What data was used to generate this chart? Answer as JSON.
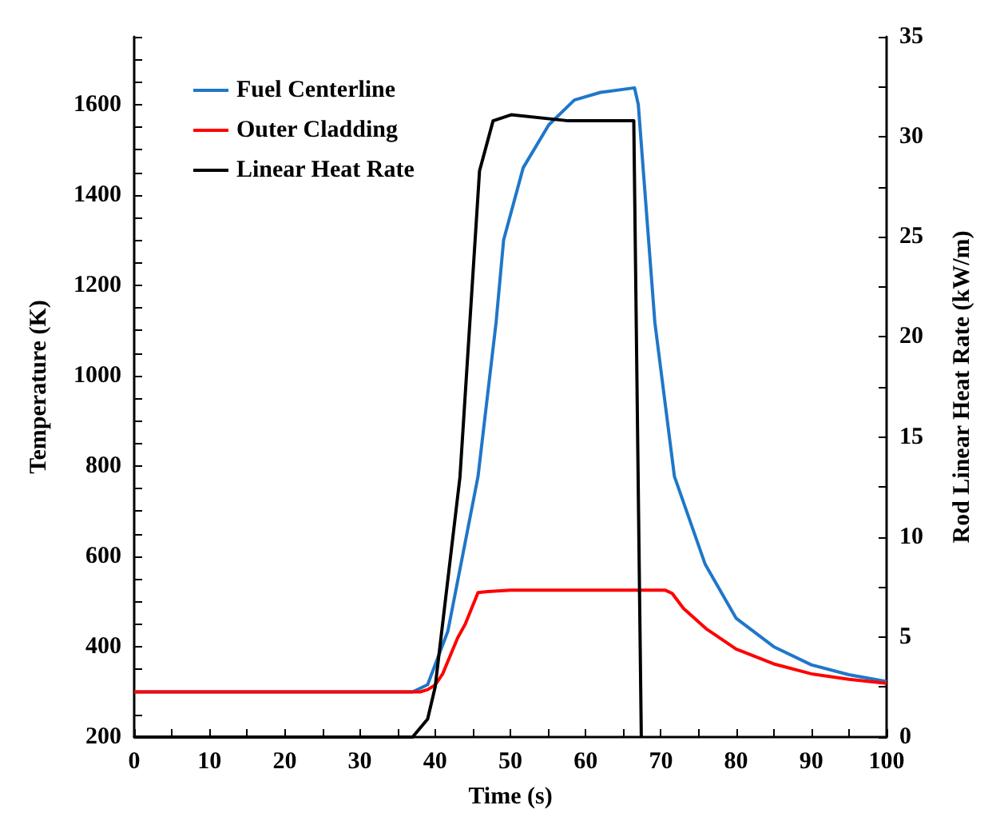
{
  "chart_data": {
    "type": "line",
    "xlabel": "Time (s)",
    "ylabel": "Temperature (K)",
    "y2label": "Rod Linear Heat Rate (kW/m)",
    "xlim": [
      0,
      100
    ],
    "xticks": [
      0,
      {
        "value": 5,
        "label": null
      },
      10,
      {
        "value": 15,
        "label": null
      },
      20,
      {
        "value": 25,
        "label": null
      },
      30,
      {
        "value": 35,
        "label": null
      },
      40,
      {
        "value": 45,
        "label": null
      },
      50,
      {
        "value": 55,
        "label": null
      },
      60,
      {
        "value": 65,
        "label": null
      },
      70,
      {
        "value": 75,
        "label": null
      },
      80,
      {
        "value": 85,
        "label": null
      },
      90,
      {
        "value": 95,
        "label": null
      },
      100
    ],
    "ylim": [
      200,
      1750
    ],
    "yticks": [
      200,
      {
        "value": 250,
        "label": null
      },
      {
        "value": 300,
        "label": null
      },
      {
        "value": 350,
        "label": null
      },
      400,
      {
        "value": 450,
        "label": null
      },
      {
        "value": 500,
        "label": null
      },
      {
        "value": 550,
        "label": null
      },
      600,
      {
        "value": 650,
        "label": null
      },
      {
        "value": 700,
        "label": null
      },
      {
        "value": 750,
        "label": null
      },
      800,
      {
        "value": 850,
        "label": null
      },
      {
        "value": 900,
        "label": null
      },
      {
        "value": 950,
        "label": null
      },
      1000,
      {
        "value": 1050,
        "label": null
      },
      {
        "value": 1100,
        "label": null
      },
      {
        "value": 1150,
        "label": null
      },
      1200,
      {
        "value": 1250,
        "label": null
      },
      {
        "value": 1300,
        "label": null
      },
      {
        "value": 1350,
        "label": null
      },
      1400,
      {
        "value": 1450,
        "label": null
      },
      {
        "value": 1500,
        "label": null
      },
      {
        "value": 1550,
        "label": null
      },
      1600,
      {
        "value": 1650,
        "label": null
      },
      {
        "value": 1700,
        "label": null
      },
      {
        "value": 1750,
        "label": null
      }
    ],
    "y2lim": [
      0,
      35
    ],
    "y2ticks": [
      0,
      {
        "value": 2.5,
        "label": null
      },
      5,
      {
        "value": 7.5,
        "label": null
      },
      10,
      {
        "value": 12.5,
        "label": null
      },
      15,
      {
        "value": 17.5,
        "label": null
      },
      20,
      {
        "value": 22.5,
        "label": null
      },
      25,
      {
        "value": 27.5,
        "label": null
      },
      30,
      {
        "value": 32.5,
        "label": null
      },
      35
    ],
    "grid": false,
    "legend": "top left",
    "marker": "none",
    "line_style": "solid",
    "series": [
      {
        "name": "Fuel Centerline",
        "color": "#1f77c8",
        "x": [
          0,
          37,
          39,
          41.7,
          43.7,
          45.7,
          48.1,
          49.1,
          51.7,
          55.1,
          58.5,
          62,
          66.5,
          67,
          69.2,
          71.8,
          75.9,
          80,
          85,
          90,
          95,
          100
        ],
        "values": [
          300,
          300,
          316,
          435,
          606,
          777,
          1118,
          1300,
          1460,
          1555,
          1610,
          1627,
          1637,
          1600,
          1118,
          777,
          582,
          463,
          400,
          360,
          338,
          323
        ]
      },
      {
        "name": "Outer Cladding",
        "color": "#ff0000",
        "x": [
          0,
          38,
          39,
          40,
          41,
          42,
          43,
          44,
          45.7,
          47,
          50,
          70.6,
          71.5,
          73,
          76,
          80,
          85,
          90,
          95,
          100
        ],
        "values": [
          300,
          300,
          305,
          315,
          340,
          380,
          420,
          450,
          520,
          522,
          525,
          525,
          518,
          485,
          440,
          395,
          362,
          340,
          328,
          319
        ]
      },
      {
        "name": "Linear Heat Rate",
        "color": "#000000",
        "axis": "y2",
        "x": [
          0,
          37,
          39,
          40,
          43.3,
          45.9,
          47.7,
          50.1,
          57.7,
          66.4,
          67.4
        ],
        "values": [
          0,
          0,
          0.9,
          2.5,
          13,
          28.3,
          30.8,
          31.1,
          30.8,
          30.8,
          0
        ]
      }
    ]
  }
}
